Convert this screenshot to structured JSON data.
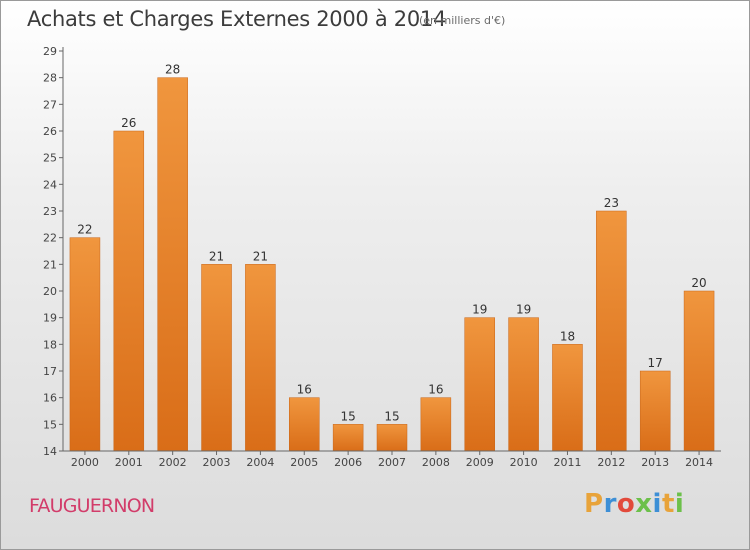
{
  "header": {
    "title": "Achats et Charges Externes 2000 à 2014",
    "subtitle": "(en milliers d'€)"
  },
  "footer": {
    "place": "FAUGUERNON",
    "brand": "Proxiti",
    "brand_colors": [
      "#e8a33a",
      "#3d8fd6",
      "#e24a3b",
      "#6cc04a",
      "#3d8fd6",
      "#e8a33a",
      "#6cc04a"
    ]
  },
  "chart_data": {
    "type": "bar",
    "title": "Achats et Charges Externes 2000 à 2014",
    "subtitle": "(en milliers d'€)",
    "categories": [
      "2000",
      "2001",
      "2002",
      "2003",
      "2004",
      "2005",
      "2006",
      "2007",
      "2008",
      "2009",
      "2010",
      "2011",
      "2012",
      "2013",
      "2014"
    ],
    "values": [
      22,
      26,
      28,
      21,
      21,
      16,
      15,
      15,
      16,
      19,
      19,
      18,
      23,
      17,
      20
    ],
    "ylim": [
      14,
      29
    ],
    "yticks": [
      14,
      15,
      16,
      17,
      18,
      19,
      20,
      21,
      22,
      23,
      24,
      25,
      26,
      27,
      28,
      29
    ],
    "grid": false,
    "bar_color": "#f0963e",
    "bar_color_dark": "#d96d18",
    "data_labels": true
  }
}
